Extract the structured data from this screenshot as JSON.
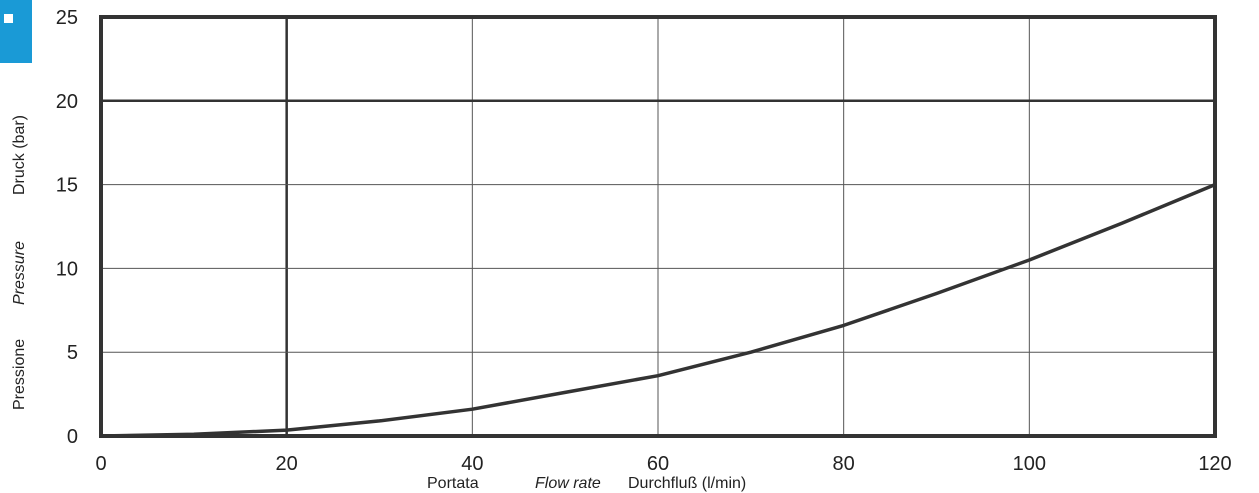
{
  "accent_color": "#1a9ad6",
  "chart_data": {
    "type": "line",
    "xlabel_parts": [
      "Portata",
      "Flow rate",
      "Durchfluß (l/min)"
    ],
    "ylabel_parts": [
      "Pressione",
      "Pressure",
      "Druck (bar)"
    ],
    "xlim": [
      0,
      120
    ],
    "ylim": [
      0,
      25
    ],
    "xticks": [
      0,
      20,
      40,
      60,
      80,
      100,
      120
    ],
    "yticks": [
      0,
      5,
      10,
      15,
      20,
      25
    ],
    "grid": true,
    "series": [
      {
        "x": [
          0,
          10,
          20,
          30,
          40,
          50,
          60,
          70,
          80,
          90,
          100,
          110,
          120
        ],
        "y": [
          0,
          0.1,
          0.35,
          0.9,
          1.6,
          2.6,
          3.6,
          5.0,
          6.6,
          8.5,
          10.5,
          12.7,
          15.0
        ]
      }
    ]
  }
}
